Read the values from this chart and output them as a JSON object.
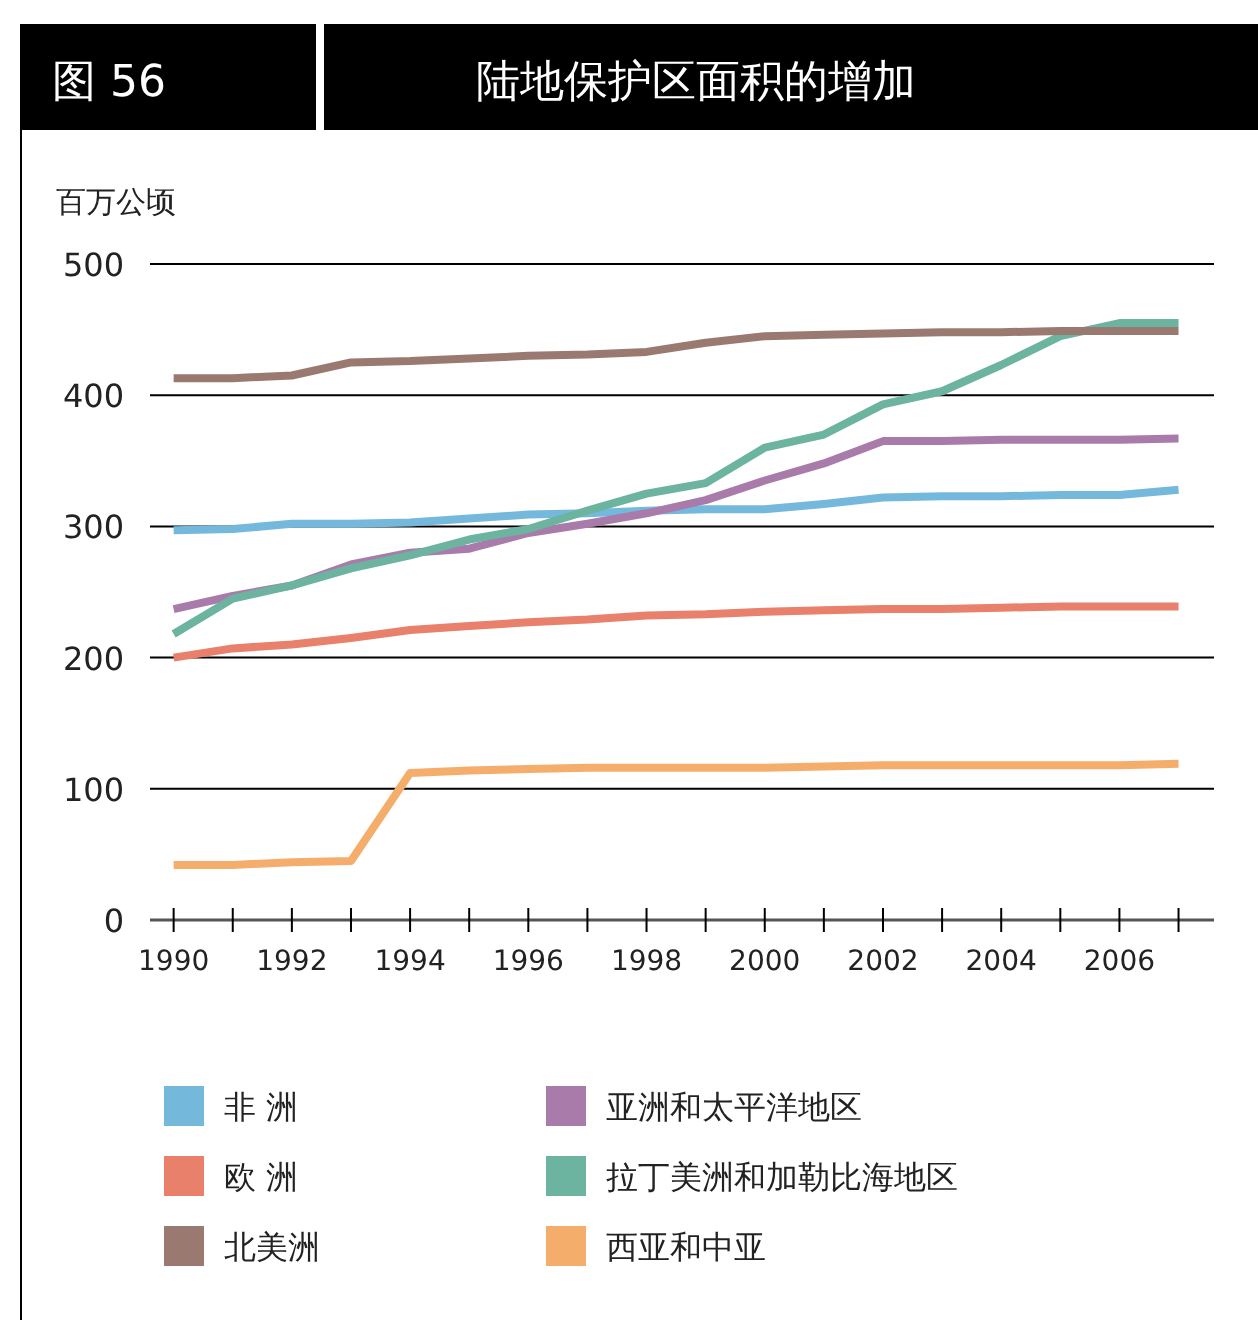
{
  "chart_data": {
    "type": "line",
    "title": "陆地保护区面积的增加",
    "annotations": [
      "图 56"
    ],
    "ylabel": "百万公顷",
    "x": [
      1990,
      1991,
      1992,
      1993,
      1994,
      1995,
      1996,
      1997,
      1998,
      1999,
      2000,
      2001,
      2002,
      2003,
      2004,
      2005,
      2006,
      2007
    ],
    "xlim": [
      1989.6,
      2007.6
    ],
    "ylim": [
      0,
      500
    ],
    "yticks": [
      0,
      100,
      200,
      300,
      400,
      500
    ],
    "xticks": [
      1990,
      {
        "value": 1991,
        "label": null
      },
      1992,
      {
        "value": 1993,
        "label": null
      },
      1994,
      {
        "value": 1995,
        "label": null
      },
      1996,
      {
        "value": 1997,
        "label": null
      },
      1998,
      {
        "value": 1999,
        "label": null
      },
      2000,
      {
        "value": 2001,
        "label": null
      },
      2002,
      {
        "value": 2003,
        "label": null
      },
      2004,
      {
        "value": 2005,
        "label": null
      },
      2006,
      {
        "value": 2007,
        "label": null
      }
    ],
    "grid": "y",
    "legend": "bottom",
    "marker": "none",
    "line_style": "solid",
    "series": [
      {
        "name": "非 洲",
        "color": "#74b9dc",
        "values": [
          297,
          298,
          302,
          302,
          303,
          306,
          309,
          310,
          312,
          313,
          313,
          317,
          322,
          323,
          323,
          324,
          324,
          328
        ]
      },
      {
        "name": "亚洲和太平洋地区",
        "color": "#a97bab",
        "values": [
          237,
          247,
          255,
          271,
          280,
          283,
          295,
          302,
          310,
          320,
          335,
          348,
          365,
          365,
          366,
          366,
          366,
          367
        ]
      },
      {
        "name": "欧 洲",
        "color": "#e8806b",
        "values": [
          200,
          207,
          210,
          215,
          221,
          224,
          227,
          229,
          232,
          233,
          235,
          236,
          237,
          237,
          238,
          239,
          239,
          239
        ]
      },
      {
        "name": "拉丁美洲和加勒比海地区",
        "color": "#6cb3a0",
        "values": [
          218,
          245,
          255,
          268,
          278,
          290,
          298,
          312,
          325,
          333,
          360,
          370,
          393,
          403,
          423,
          445,
          455,
          455
        ]
      },
      {
        "name": "北美洲",
        "color": "#9a7a70",
        "values": [
          413,
          413,
          415,
          425,
          426,
          428,
          430,
          431,
          433,
          440,
          445,
          446,
          447,
          448,
          448,
          449,
          449,
          449
        ]
      },
      {
        "name": "西亚和中亚",
        "color": "#f5ad6c",
        "values": [
          42,
          42,
          44,
          45,
          112,
          114,
          115,
          116,
          116,
          116,
          116,
          117,
          118,
          118,
          118,
          118,
          118,
          119
        ]
      }
    ]
  }
}
